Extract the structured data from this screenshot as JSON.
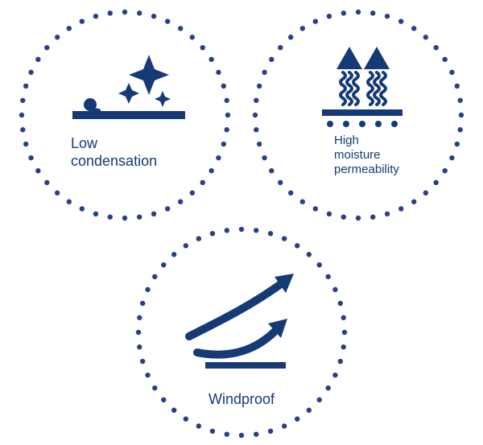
{
  "colors": {
    "primary": "#153a75",
    "dot": "#2b3f89",
    "background": "#ffffff"
  },
  "border": {
    "dot_count": 44,
    "dot_radius": 3.2,
    "ring_radius": 128
  },
  "circles": {
    "lowCondensation": {
      "label": "Low\ncondensation"
    },
    "moisture": {
      "label": "High\nmoisture\npermeability"
    },
    "wind": {
      "label": "Windproof"
    }
  },
  "label_style": {
    "font_family": "Arial, Helvetica, sans-serif",
    "font_size_main": 18,
    "font_size_small": 15,
    "color": "#153a75"
  }
}
